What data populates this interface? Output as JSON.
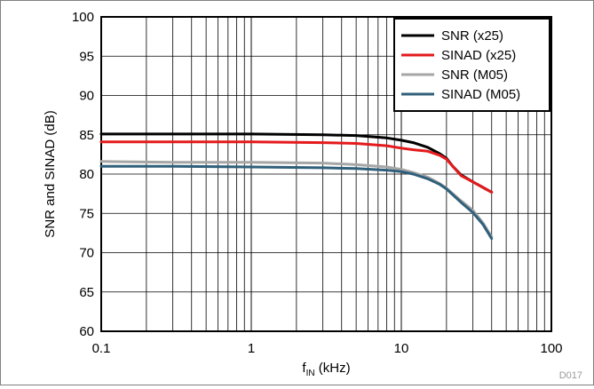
{
  "chart_data": {
    "type": "line",
    "xlabel_main": "f",
    "xlabel_sub": "IN",
    "xlabel_unit": " (kHz)",
    "ylabel": "SNR and SINAD (dB)",
    "xscale": "log",
    "xlim": [
      0.1,
      100
    ],
    "ylim": [
      60,
      100
    ],
    "x_ticks": [
      "0.1",
      "1",
      "10",
      "100"
    ],
    "y_ticks": [
      "60",
      "65",
      "70",
      "75",
      "80",
      "85",
      "90",
      "95",
      "100"
    ],
    "grid": true,
    "legend_position": "top-right",
    "watermark": "D017",
    "series": [
      {
        "name": "SNR (x25)",
        "color": "#000000",
        "points": [
          [
            0.1,
            85.1
          ],
          [
            0.3,
            85.1
          ],
          [
            1,
            85.1
          ],
          [
            3,
            85.0
          ],
          [
            5,
            84.9
          ],
          [
            8,
            84.6
          ],
          [
            10,
            84.3
          ],
          [
            12,
            84.0
          ],
          [
            15,
            83.4
          ],
          [
            18,
            82.6
          ],
          [
            20,
            82.0
          ],
          [
            22,
            81.0
          ],
          [
            25,
            79.9
          ],
          [
            30,
            79.0
          ],
          [
            35,
            78.3
          ],
          [
            40,
            77.7
          ]
        ]
      },
      {
        "name": "SINAD (x25)",
        "color": "#e41a1c",
        "points": [
          [
            0.1,
            84.1
          ],
          [
            0.3,
            84.1
          ],
          [
            1,
            84.1
          ],
          [
            3,
            84.0
          ],
          [
            5,
            83.9
          ],
          [
            8,
            83.6
          ],
          [
            10,
            83.3
          ],
          [
            12,
            83.1
          ],
          [
            15,
            82.9
          ],
          [
            18,
            82.4
          ],
          [
            20,
            81.9
          ],
          [
            22,
            81.0
          ],
          [
            25,
            79.8
          ],
          [
            30,
            79.0
          ],
          [
            35,
            78.3
          ],
          [
            40,
            77.7
          ]
        ]
      },
      {
        "name": "SNR (M05)",
        "color": "#a6a6a6",
        "points": [
          [
            0.1,
            81.6
          ],
          [
            0.3,
            81.5
          ],
          [
            1,
            81.5
          ],
          [
            3,
            81.4
          ],
          [
            5,
            81.2
          ],
          [
            8,
            80.9
          ],
          [
            10,
            80.6
          ],
          [
            12,
            80.2
          ],
          [
            15,
            79.6
          ],
          [
            18,
            78.8
          ],
          [
            20,
            78.2
          ],
          [
            25,
            76.6
          ],
          [
            30,
            75.4
          ],
          [
            35,
            73.8
          ],
          [
            40,
            72.0
          ]
        ]
      },
      {
        "name": "SINAD (M05)",
        "color": "#2f5f7a",
        "points": [
          [
            0.1,
            81.0
          ],
          [
            0.3,
            81.0
          ],
          [
            1,
            80.9
          ],
          [
            3,
            80.8
          ],
          [
            5,
            80.7
          ],
          [
            8,
            80.5
          ],
          [
            10,
            80.3
          ],
          [
            12,
            80.0
          ],
          [
            15,
            79.4
          ],
          [
            18,
            78.7
          ],
          [
            20,
            78.1
          ],
          [
            25,
            76.4
          ],
          [
            30,
            75.1
          ],
          [
            35,
            73.6
          ],
          [
            40,
            71.8
          ]
        ]
      }
    ]
  }
}
